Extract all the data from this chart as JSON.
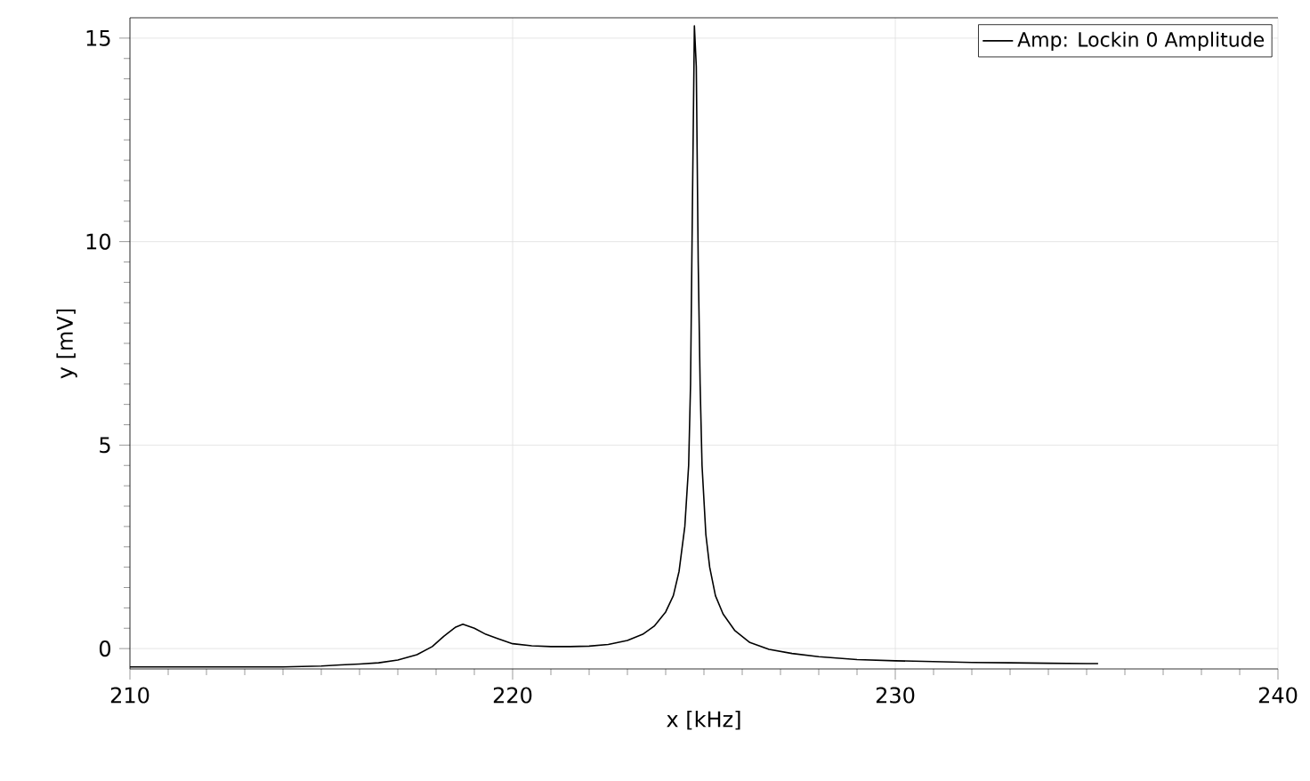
{
  "chart_data": {
    "type": "line",
    "xlabel": "x [kHz]",
    "ylabel": "y [mV]",
    "xlim": [
      210,
      240
    ],
    "ylim": [
      -0.5,
      15.5
    ],
    "xticks": [
      210,
      220,
      230,
      240
    ],
    "yticks": [
      0,
      5,
      10,
      15
    ],
    "grid": true,
    "legend": "top right",
    "marker": "none",
    "line_style": "solid",
    "series": [
      {
        "name": "Amp: Lockin 0 Amplitude",
        "color": "#000000",
        "x": [
          210,
          212,
          214,
          215,
          215.5,
          216,
          216.5,
          217,
          217.5,
          217.9,
          218.2,
          218.5,
          218.7,
          219,
          219.3,
          219.6,
          220,
          220.5,
          221,
          221.5,
          222,
          222.5,
          223,
          223.4,
          223.7,
          224,
          224.2,
          224.35,
          224.5,
          224.6,
          224.65,
          224.7,
          224.75,
          224.8,
          224.85,
          224.9,
          224.95,
          225.05,
          225.15,
          225.3,
          225.5,
          225.8,
          226.2,
          226.7,
          227.3,
          228,
          229,
          230,
          231,
          232,
          233,
          234,
          235,
          235.3
        ],
        "values": [
          -0.45,
          -0.45,
          -0.45,
          -0.43,
          -0.4,
          -0.38,
          -0.35,
          -0.28,
          -0.15,
          0.05,
          0.3,
          0.52,
          0.6,
          0.5,
          0.35,
          0.25,
          0.12,
          0.07,
          0.05,
          0.05,
          0.06,
          0.1,
          0.2,
          0.35,
          0.55,
          0.9,
          1.3,
          1.9,
          3.0,
          4.5,
          6.5,
          11,
          15.3,
          14.3,
          9.5,
          6.5,
          4.5,
          2.8,
          2.0,
          1.3,
          0.85,
          0.45,
          0.15,
          -0.02,
          -0.12,
          -0.2,
          -0.27,
          -0.3,
          -0.32,
          -0.34,
          -0.35,
          -0.36,
          -0.37,
          -0.37
        ]
      }
    ]
  }
}
